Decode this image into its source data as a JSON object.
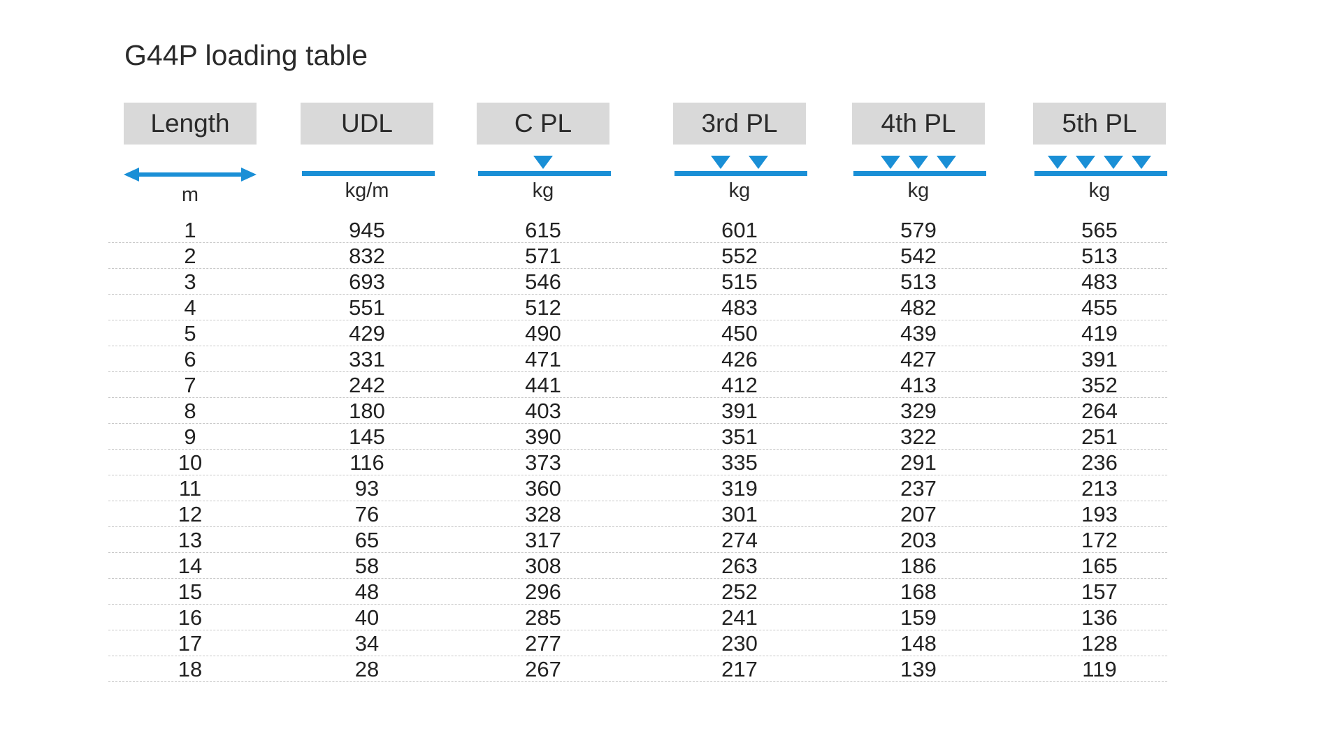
{
  "title": "G44P loading table",
  "columns": [
    {
      "header": "Length",
      "unit": "m",
      "icon": "double-arrow-icon",
      "triangles": 0
    },
    {
      "header": "UDL",
      "unit": "kg/m",
      "icon": "line-icon",
      "triangles": 0
    },
    {
      "header": "C PL",
      "unit": "kg",
      "icon": "one-load-icon",
      "triangles": 1
    },
    {
      "header": "3rd PL",
      "unit": "kg",
      "icon": "two-load-icon",
      "triangles": 2
    },
    {
      "header": "4th PL",
      "unit": "kg",
      "icon": "three-load-icon",
      "triangles": 3
    },
    {
      "header": "5th PL",
      "unit": "kg",
      "icon": "four-load-icon",
      "triangles": 4
    }
  ],
  "rows": [
    [
      "1",
      "945",
      "615",
      "601",
      "579",
      "565"
    ],
    [
      "2",
      "832",
      "571",
      "552",
      "542",
      "513"
    ],
    [
      "3",
      "693",
      "546",
      "515",
      "513",
      "483"
    ],
    [
      "4",
      "551",
      "512",
      "483",
      "482",
      "455"
    ],
    [
      "5",
      "429",
      "490",
      "450",
      "439",
      "419"
    ],
    [
      "6",
      "331",
      "471",
      "426",
      "427",
      "391"
    ],
    [
      "7",
      "242",
      "441",
      "412",
      "413",
      "352"
    ],
    [
      "8",
      "180",
      "403",
      "391",
      "329",
      "264"
    ],
    [
      "9",
      "145",
      "390",
      "351",
      "322",
      "251"
    ],
    [
      "10",
      "116",
      "373",
      "335",
      "291",
      "236"
    ],
    [
      "11",
      "93",
      "360",
      "319",
      "237",
      "213"
    ],
    [
      "12",
      "76",
      "328",
      "301",
      "207",
      "193"
    ],
    [
      "13",
      "65",
      "317",
      "274",
      "203",
      "172"
    ],
    [
      "14",
      "58",
      "308",
      "263",
      "186",
      "165"
    ],
    [
      "15",
      "48",
      "296",
      "252",
      "168",
      "157"
    ],
    [
      "16",
      "40",
      "285",
      "241",
      "159",
      "136"
    ],
    [
      "17",
      "34",
      "277",
      "230",
      "148",
      "128"
    ],
    [
      "18",
      "28",
      "267",
      "217",
      "139",
      "119"
    ]
  ],
  "colors": {
    "accent": "#1a8fd6",
    "header_bg": "#d9d9d9"
  }
}
